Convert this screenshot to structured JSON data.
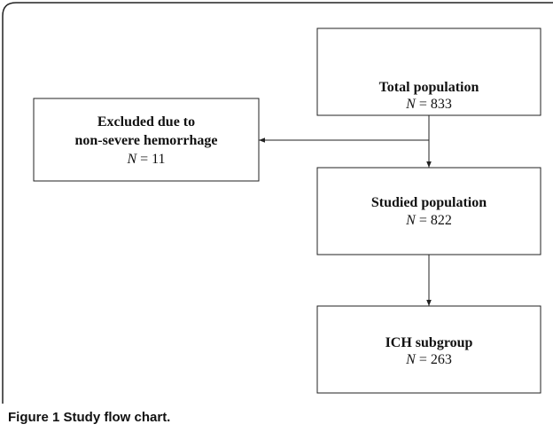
{
  "nodes": [
    {
      "title_lines": [
        "Total population"
      ],
      "n_symbol": "N",
      "n_text": "= 833"
    },
    {
      "title_lines": [
        "Excluded due to",
        "non-severe hemorrhage"
      ],
      "n_symbol": "N",
      "n_text": "= 11"
    },
    {
      "title_lines": [
        "Studied population"
      ],
      "n_symbol": "N",
      "n_text": "= 822"
    },
    {
      "title_lines": [
        "ICH subgroup"
      ],
      "n_symbol": "N",
      "n_text": "= 263"
    }
  ],
  "caption": "Figure 1 Study flow chart."
}
